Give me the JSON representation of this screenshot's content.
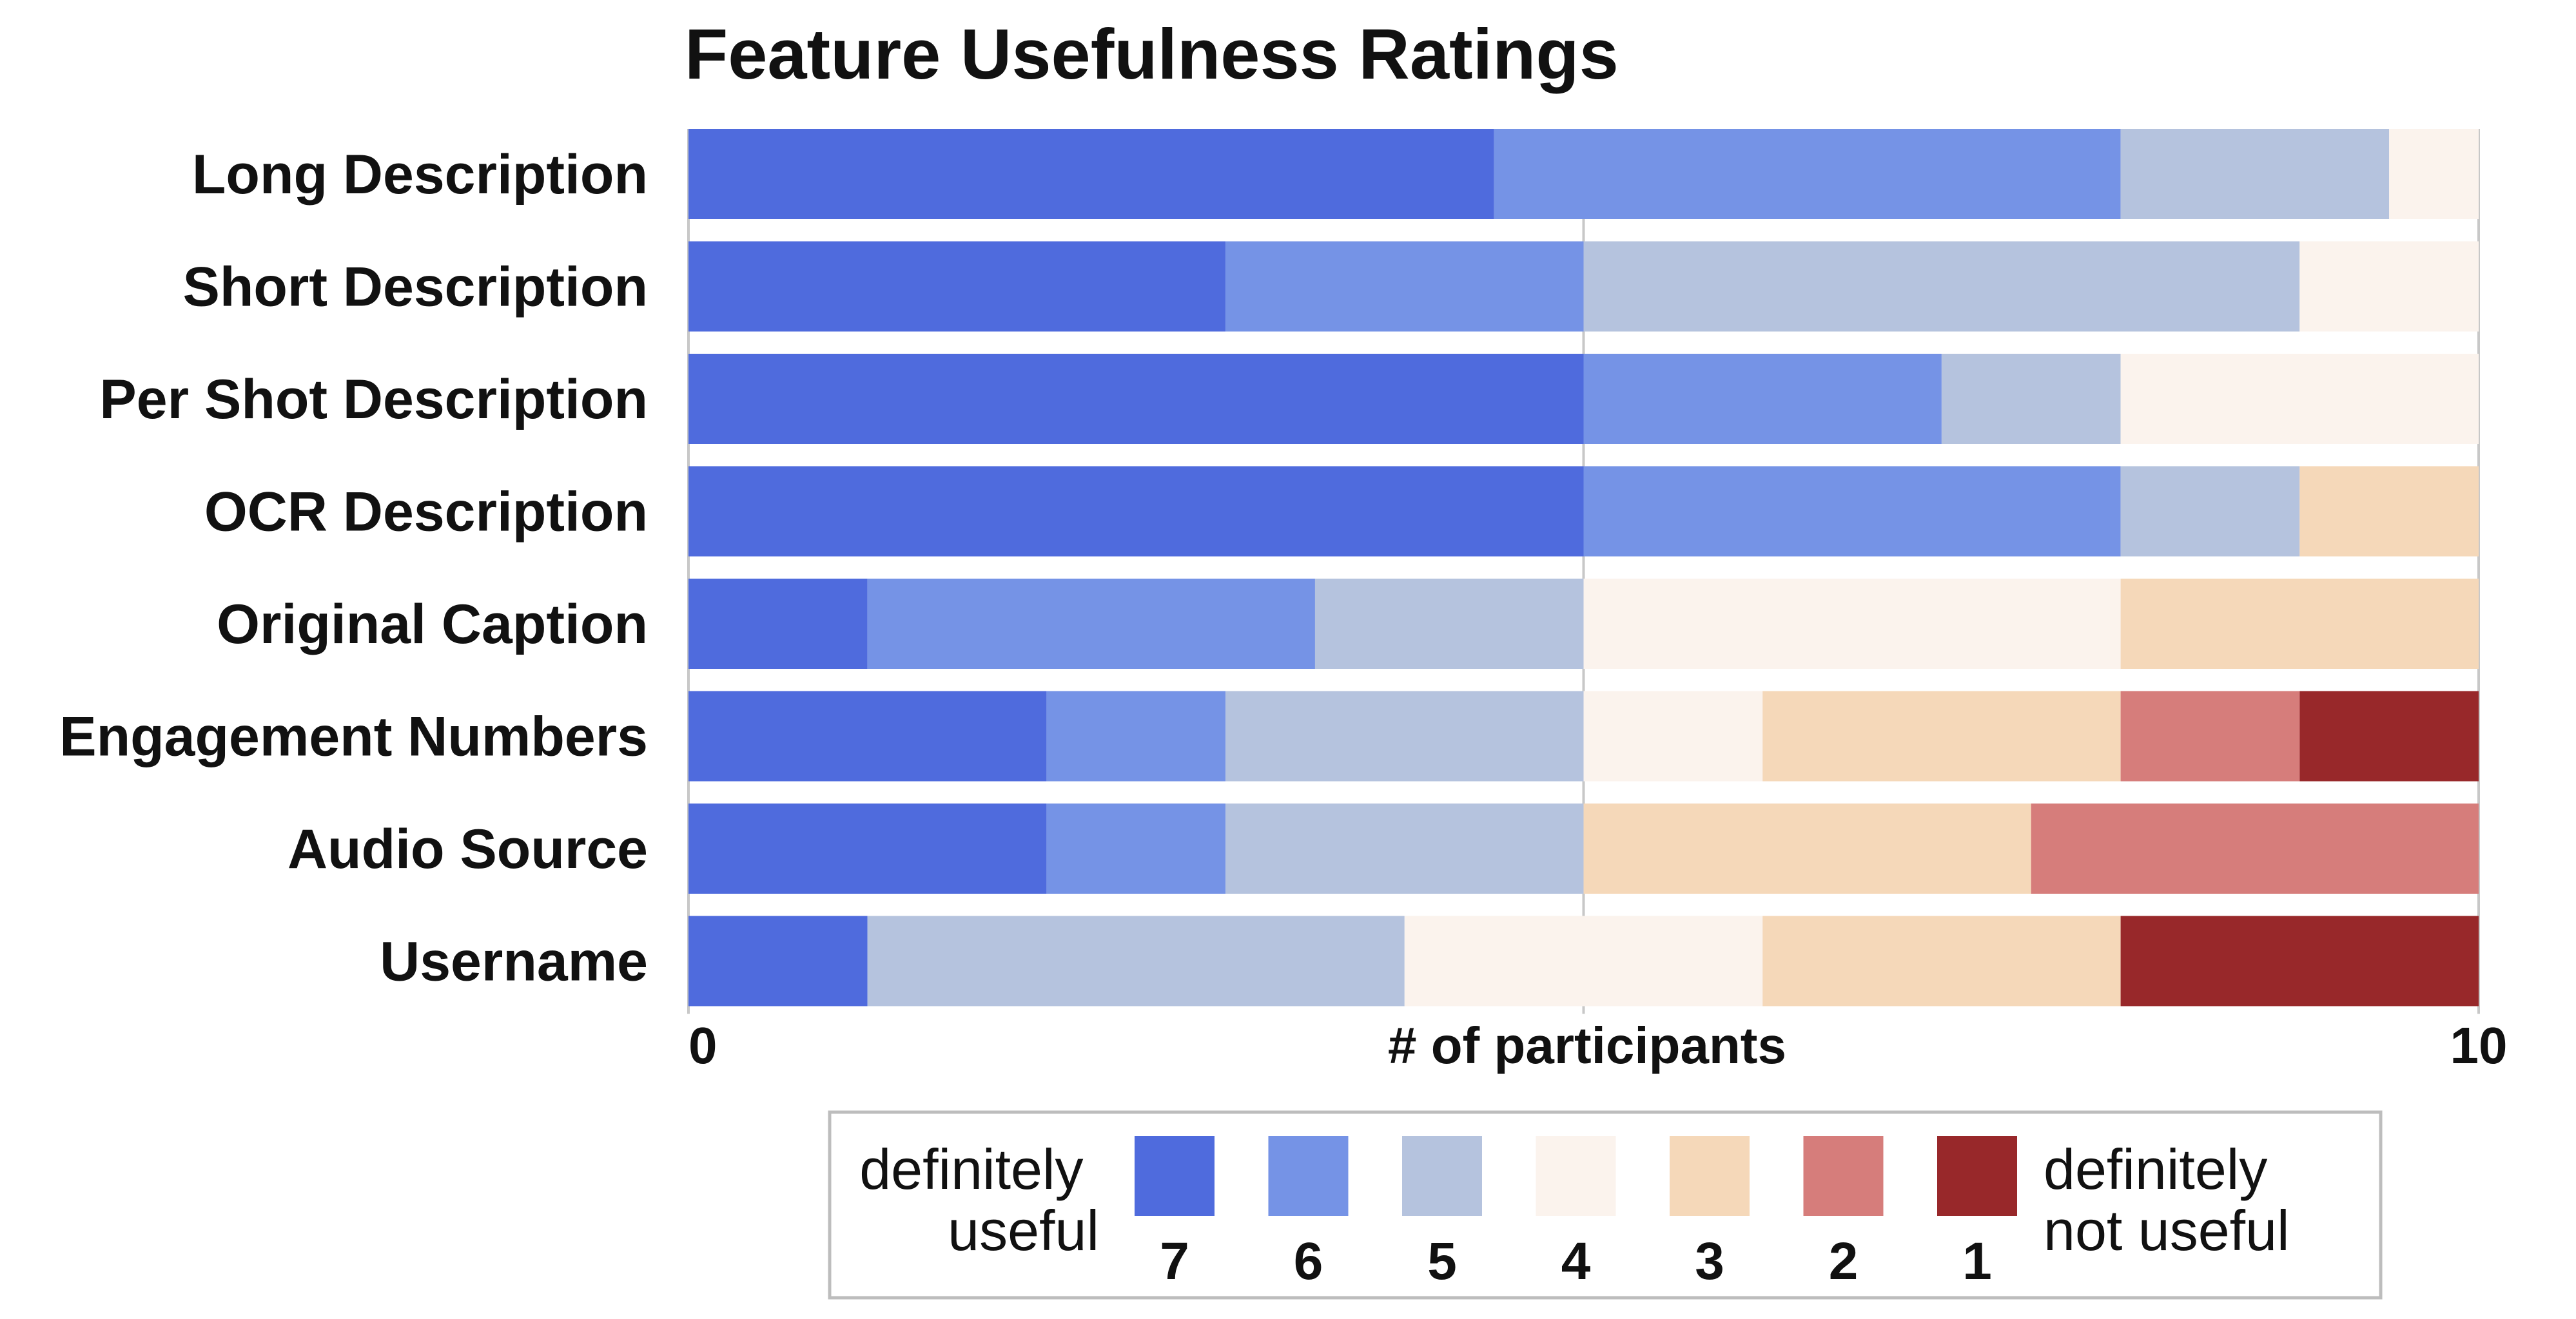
{
  "chart_data": {
    "type": "bar",
    "orientation": "horizontal",
    "stacked": true,
    "title": "Feature Usefulness Ratings",
    "xlabel": "# of participants",
    "ylabel": "",
    "xlim": [
      0,
      10
    ],
    "x_ticks": [
      "0",
      "10"
    ],
    "grid": true,
    "legend_position": "bottom",
    "categories": [
      "Long Description",
      "Short Description",
      "Per Shot Description",
      "OCR Description",
      "Original Caption",
      "Engagement Numbers",
      "Audio Source",
      "Username"
    ],
    "series": [
      {
        "rating": "7",
        "color": "#4f6bdd",
        "values": [
          4.5,
          3,
          5,
          5,
          1,
          2,
          2,
          1
        ]
      },
      {
        "rating": "6",
        "color": "#7593e6",
        "values": [
          3.5,
          2,
          2,
          3,
          2.5,
          1,
          1,
          0
        ]
      },
      {
        "rating": "5",
        "color": "#b5c3de",
        "values": [
          1.5,
          4,
          1,
          1,
          1.5,
          2,
          2,
          3
        ]
      },
      {
        "rating": "4",
        "color": "#fbf3ed",
        "values": [
          0.5,
          1,
          2,
          0,
          3,
          1,
          0,
          2
        ]
      },
      {
        "rating": "3",
        "color": "#f5d8b9",
        "values": [
          0,
          0,
          0,
          1,
          2,
          2,
          2.5,
          2
        ]
      },
      {
        "rating": "2",
        "color": "#d67d7b",
        "values": [
          0,
          0,
          0,
          0,
          0,
          1,
          2.5,
          0
        ]
      },
      {
        "rating": "1",
        "color": "#98282a",
        "values": [
          0,
          0,
          0,
          0,
          0,
          1,
          0,
          2
        ]
      }
    ],
    "legend": {
      "left_label_line1": "definitely",
      "left_label_line2": "useful",
      "right_label_line1": "definitely",
      "right_label_line2": "not useful"
    }
  }
}
